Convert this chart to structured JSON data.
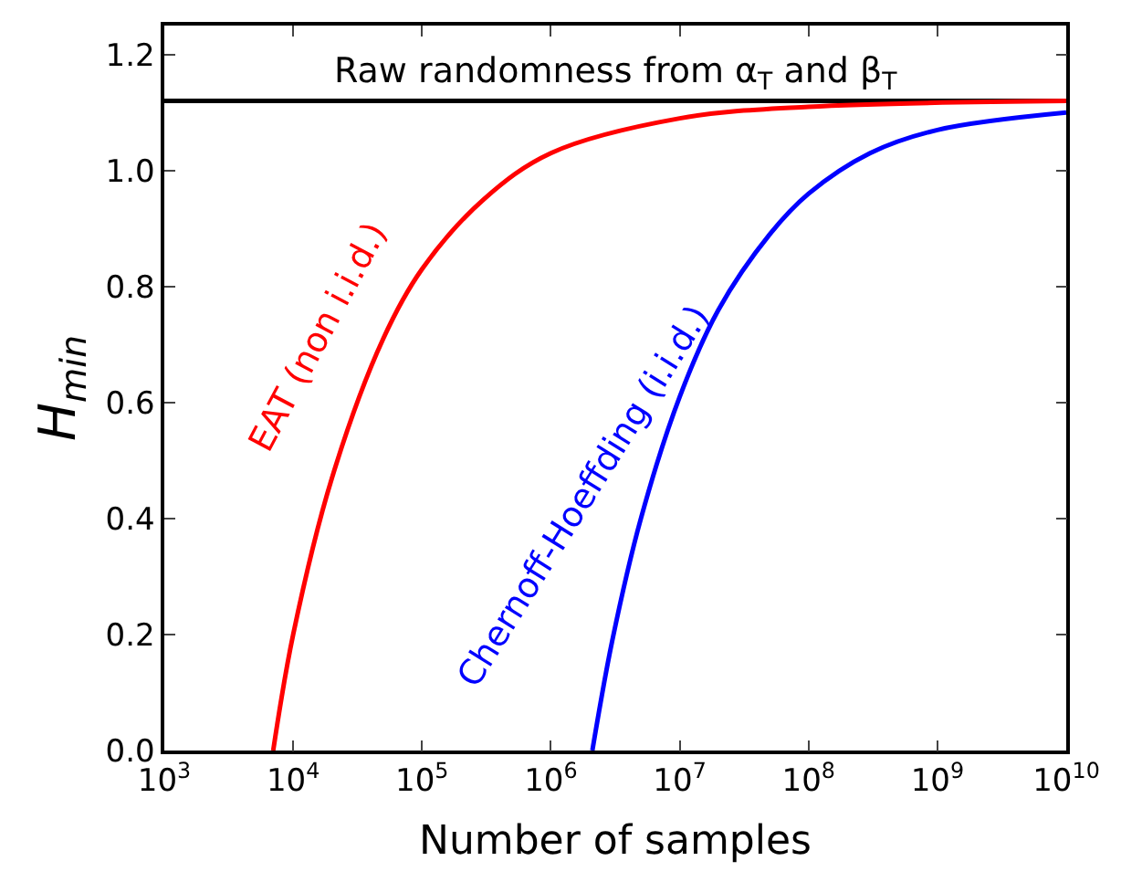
{
  "chart_data": {
    "type": "line",
    "xlabel": "Number of samples",
    "ylabel": "H$_{min}$",
    "log": "x",
    "xlim": [
      1000,
      10000000000
    ],
    "ylim": [
      0,
      1.25
    ],
    "xticks": [
      {
        "value": 1000,
        "label": "10$^{3}$"
      },
      {
        "value": 10000,
        "label": "10$^{4}$"
      },
      {
        "value": 100000,
        "label": "10$^{5}$"
      },
      {
        "value": 1000000,
        "label": "10$^{6}$"
      },
      {
        "value": 10000000,
        "label": "10$^{7}$"
      },
      {
        "value": 100000000,
        "label": "10$^{8}$"
      },
      {
        "value": 1000000000,
        "label": "10$^{9}$"
      },
      {
        "value": 10000000000,
        "label": "10$^{10}$"
      }
    ],
    "yticks": [
      {
        "value": 0,
        "label": "0.0"
      },
      {
        "value": 0.2,
        "label": "0.2"
      },
      {
        "value": 0.4,
        "label": "0.4"
      },
      {
        "value": 0.6,
        "label": "0.6"
      },
      {
        "value": 0.8,
        "label": "0.8"
      },
      {
        "value": 1.0,
        "label": "1.0"
      },
      {
        "value": 1.2,
        "label": "1.2"
      }
    ],
    "series": [
      {
        "color": "#ff0000",
        "x": [
          7000,
          10000,
          20000,
          50000,
          100000,
          300000,
          1000000,
          10000000,
          100000000,
          10000000000
        ],
        "values": [
          0.0,
          0.2,
          0.47,
          0.71,
          0.83,
          0.95,
          1.03,
          1.09,
          1.11,
          1.12
        ]
      },
      {
        "color": "#0000ff",
        "x": [
          2100000,
          3000000,
          5000000,
          10000000,
          20000000,
          50000000,
          100000000,
          300000000,
          1000000000,
          10000000000
        ],
        "values": [
          0.0,
          0.19,
          0.4,
          0.61,
          0.76,
          0.89,
          0.96,
          1.03,
          1.07,
          1.1
        ]
      }
    ],
    "annotations": [
      "EAT (non i.i.d.)",
      "Chernoff-Hoeffding (i.i.d.)"
    ],
    "ref_lines": [
      {
        "axis": "y",
        "value": 1.12,
        "label": "Raw randomness from α$_{T}$ and β$_{T}$",
        "color": "#000000"
      }
    ],
    "marker": "none",
    "line_style": "solid"
  }
}
